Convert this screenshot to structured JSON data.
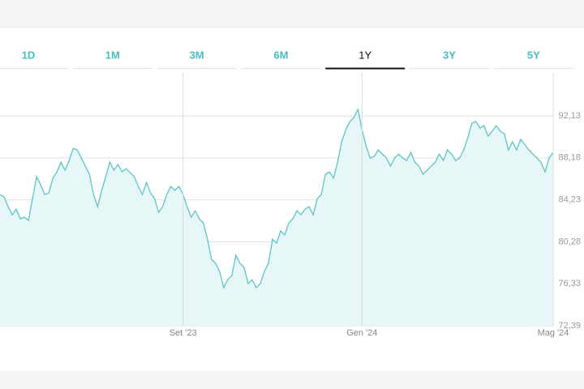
{
  "tabs": [
    "1D",
    "1M",
    "3M",
    "6M",
    "1Y",
    "3Y",
    "5Y"
  ],
  "selected_tab": 4,
  "chart_data": {
    "type": "area",
    "color": "#5cc6c9",
    "fill": "#e7f7f8",
    "categories": [
      null,
      null,
      null,
      null,
      null,
      null,
      null,
      null,
      null,
      null,
      null,
      null,
      null,
      null,
      null,
      null,
      null,
      null,
      null,
      null,
      null,
      null,
      null,
      null,
      null,
      null,
      null,
      null,
      null,
      null,
      null,
      null,
      null,
      null,
      null,
      null,
      null,
      null,
      null,
      null,
      null,
      null,
      null,
      null,
      null,
      "Set '23",
      null,
      null,
      null,
      null,
      null,
      null,
      null,
      null,
      null,
      null,
      null,
      null,
      null,
      null,
      null,
      null,
      null,
      null,
      null,
      null,
      null,
      null,
      null,
      null,
      null,
      null,
      null,
      null,
      null,
      null,
      null,
      null,
      null,
      null,
      null,
      null,
      null,
      null,
      null,
      null,
      null,
      null,
      null,
      "Gen '24",
      null,
      null,
      null,
      null,
      null,
      null,
      null,
      null,
      null,
      null,
      null,
      null,
      null,
      null,
      null,
      null,
      null,
      null,
      null,
      null,
      null,
      null,
      null,
      null,
      null,
      null,
      null,
      null,
      null,
      null,
      null,
      null,
      null,
      null,
      null,
      null,
      null,
      null,
      null,
      null,
      null,
      null,
      null,
      null,
      null,
      null,
      "Mag '24"
    ],
    "values": [
      84.73,
      84.51,
      83.59,
      82.83,
      83.36,
      82.45,
      82.6,
      82.3,
      84.35,
      86.41,
      85.65,
      84.73,
      84.89,
      86.26,
      86.87,
      87.78,
      87.02,
      87.93,
      89.08,
      88.93,
      88.16,
      87.4,
      86.64,
      84.73,
      83.59,
      85.12,
      86.41,
      87.78,
      87.02,
      87.55,
      86.87,
      87.17,
      86.79,
      86.41,
      85.5,
      84.73,
      85.88,
      84.89,
      84.35,
      83.06,
      83.59,
      84.73,
      85.5,
      85.12,
      85.5,
      84.73,
      83.59,
      82.6,
      83.21,
      82.45,
      82.07,
      80.54,
      78.64,
      78.26,
      77.5,
      75.97,
      76.73,
      77.11,
      79.02,
      78.26,
      77.88,
      76.35,
      76.73,
      75.97,
      76.35,
      77.5,
      78.26,
      80.54,
      80.16,
      81.31,
      80.92,
      82.07,
      82.45,
      83.21,
      82.83,
      83.36,
      83.59,
      82.83,
      84.35,
      84.73,
      86.64,
      86.87,
      86.26,
      87.78,
      89.69,
      90.83,
      91.59,
      91.97,
      92.74,
      90.83,
      89.31,
      88.16,
      88.32,
      88.93,
      88.54,
      88.16,
      87.4,
      88.16,
      88.54,
      88.16,
      87.93,
      88.7,
      87.78,
      87.4,
      86.64,
      87.02,
      87.4,
      87.78,
      88.54,
      87.93,
      88.93,
      88.54,
      87.93,
      88.16,
      88.93,
      90.07,
      91.44,
      91.59,
      90.98,
      91.21,
      90.22,
      90.68,
      91.21,
      90.68,
      90.45,
      88.93,
      89.69,
      88.93,
      89.92,
      89.46,
      88.93,
      88.54,
      88.16,
      87.78,
      86.87,
      88.16,
      88.7
    ],
    "ylim": [
      72.39,
      96.17
    ],
    "yticks": [
      {
        "value": 72.39,
        "label": "72,39"
      },
      {
        "value": 76.33,
        "label": "76,33"
      },
      {
        "value": 80.28,
        "label": "80,28"
      },
      {
        "value": 84.23,
        "label": "84,23"
      },
      {
        "value": 88.18,
        "label": "88,18"
      },
      {
        "value": 92.13,
        "label": "92,13"
      }
    ],
    "grid": true
  }
}
